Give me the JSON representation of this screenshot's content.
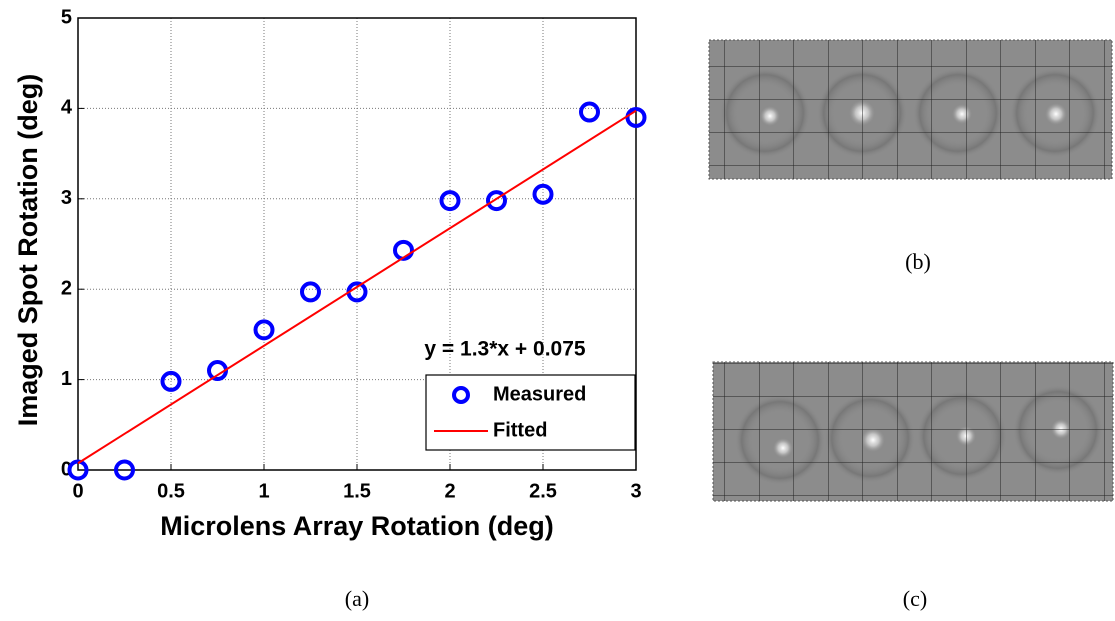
{
  "chart_data": {
    "type": "scatter",
    "xlabel": "Microlens Array Rotation (deg)",
    "ylabel": "Imaged Spot Rotation (deg)",
    "annotation": "y = 1.3*x + 0.075",
    "xlim": [
      0,
      3
    ],
    "ylim": [
      0,
      5
    ],
    "xticks": [
      0,
      0.5,
      1,
      1.5,
      2,
      2.5,
      3
    ],
    "yticks": [
      0,
      1,
      2,
      3,
      4,
      5
    ],
    "grid": true,
    "legend": "lower right",
    "series": [
      {
        "name": "Measured",
        "color": "#0000ff",
        "style": "markers",
        "x": [
          0,
          0.25,
          0.5,
          0.75,
          1,
          1.25,
          1.5,
          1.75,
          2,
          2.25,
          2.5,
          2.75,
          3
        ],
        "values": [
          0,
          0,
          0.98,
          1.1,
          1.55,
          1.97,
          1.97,
          2.43,
          2.98,
          2.98,
          3.05,
          3.96,
          3.9
        ]
      },
      {
        "name": "Fitted",
        "color": "#ff0000",
        "style": "line",
        "x": [
          0,
          3
        ],
        "values": [
          0.075,
          3.975
        ]
      }
    ]
  },
  "panel_labels": {
    "a": "(a)",
    "b": "(b)",
    "c": "(c)"
  }
}
